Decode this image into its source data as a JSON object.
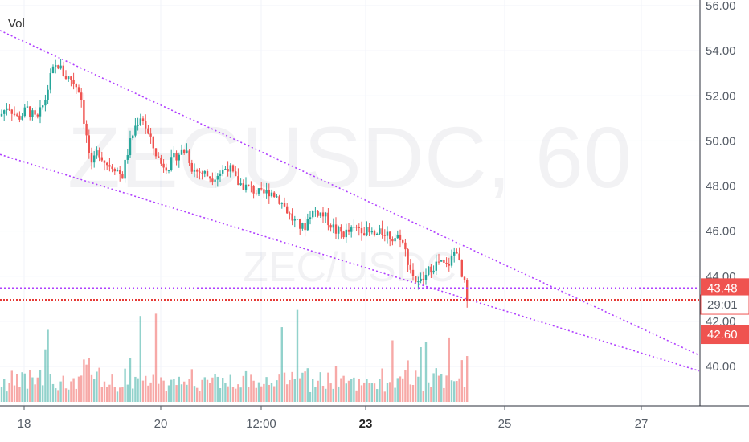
{
  "chart": {
    "indicator_label": "Vol",
    "watermark_symbol": "ZECUSDC, 60",
    "watermark_pair": "ZEC/USDC"
  },
  "colors": {
    "up": "#26a69a",
    "down": "#ef5350",
    "trendline": "#b040ff",
    "price_line": "#e53935",
    "axis_bg": "#ffffff",
    "grid": "#f0f3fa"
  },
  "price_axis": {
    "ticks": [
      "56.00",
      "54.00",
      "52.00",
      "50.00",
      "48.00",
      "46.00",
      "44.00",
      "42.00",
      "40.00"
    ],
    "markers": [
      {
        "value": "43.48",
        "kind": "trendline"
      },
      {
        "value": "29:01",
        "kind": "countdown"
      },
      {
        "value": "42.60",
        "kind": "last_price"
      }
    ]
  },
  "time_axis": {
    "ticks": [
      {
        "label": "18",
        "bold": false
      },
      {
        "label": "20",
        "bold": false
      },
      {
        "label": "12:00",
        "bold": false
      },
      {
        "label": "23",
        "bold": true
      },
      {
        "label": "25",
        "bold": false
      },
      {
        "label": "27",
        "bold": false
      }
    ]
  },
  "chart_data": {
    "type": "candlestick",
    "symbol": "ZECUSDC",
    "interval": "60",
    "ylim": [
      38.5,
      56.3
    ],
    "last_price": 42.6,
    "grid": true,
    "x_ticks": [
      "18",
      "20",
      "12:00",
      "23",
      "25",
      "27"
    ],
    "y_ticks": [
      56,
      54,
      52,
      50,
      48,
      46,
      44,
      42,
      40
    ],
    "price_path": [
      [
        0,
        51.1
      ],
      [
        10,
        51.6
      ],
      [
        22,
        51.0
      ],
      [
        34,
        51.4
      ],
      [
        46,
        50.9
      ],
      [
        56,
        51.8
      ],
      [
        64,
        53.0
      ],
      [
        72,
        53.4
      ],
      [
        80,
        52.9
      ],
      [
        90,
        52.7
      ],
      [
        100,
        52.2
      ],
      [
        106,
        50.5
      ],
      [
        114,
        48.8
      ],
      [
        122,
        49.6
      ],
      [
        132,
        49.0
      ],
      [
        142,
        48.9
      ],
      [
        152,
        48.4
      ],
      [
        160,
        49.7
      ],
      [
        168,
        50.6
      ],
      [
        176,
        51.2
      ],
      [
        184,
        50.3
      ],
      [
        192,
        49.6
      ],
      [
        200,
        49.0
      ],
      [
        210,
        48.9
      ],
      [
        220,
        49.4
      ],
      [
        232,
        49.6
      ],
      [
        240,
        48.7
      ],
      [
        252,
        48.6
      ],
      [
        262,
        48.4
      ],
      [
        274,
        48.6
      ],
      [
        284,
        48.9
      ],
      [
        294,
        48.2
      ],
      [
        304,
        48.0
      ],
      [
        316,
        47.8
      ],
      [
        326,
        47.6
      ],
      [
        336,
        47.8
      ],
      [
        346,
        47.5
      ],
      [
        356,
        47.0
      ],
      [
        362,
        46.6
      ],
      [
        370,
        46.3
      ],
      [
        378,
        46.1
      ],
      [
        386,
        46.8
      ],
      [
        394,
        46.9
      ],
      [
        402,
        46.7
      ],
      [
        410,
        46.4
      ],
      [
        418,
        46.0
      ],
      [
        428,
        45.9
      ],
      [
        438,
        46.0
      ],
      [
        448,
        46.2
      ],
      [
        458,
        45.9
      ],
      [
        468,
        45.8
      ],
      [
        478,
        46.0
      ],
      [
        488,
        45.7
      ],
      [
        498,
        45.8
      ],
      [
        506,
        44.9
      ],
      [
        512,
        44.2
      ],
      [
        520,
        43.6
      ],
      [
        528,
        43.9
      ],
      [
        536,
        44.4
      ],
      [
        546,
        44.6
      ],
      [
        556,
        44.4
      ],
      [
        562,
        44.8
      ],
      [
        568,
        45.3
      ],
      [
        574,
        44.0
      ],
      [
        578,
        43.6
      ],
      [
        582,
        42.6
      ]
    ],
    "volume_scale_max": 1.0,
    "trendlines": [
      {
        "name": "channel-upper",
        "points": [
          [
            0,
            54.9
          ],
          [
            870,
            40.5
          ]
        ]
      },
      {
        "name": "channel-lower",
        "points": [
          [
            0,
            49.4
          ],
          [
            870,
            39.8
          ]
        ]
      },
      {
        "name": "horizontal-level",
        "points": [
          [
            0,
            43.48
          ],
          [
            870,
            43.48
          ]
        ]
      }
    ]
  }
}
